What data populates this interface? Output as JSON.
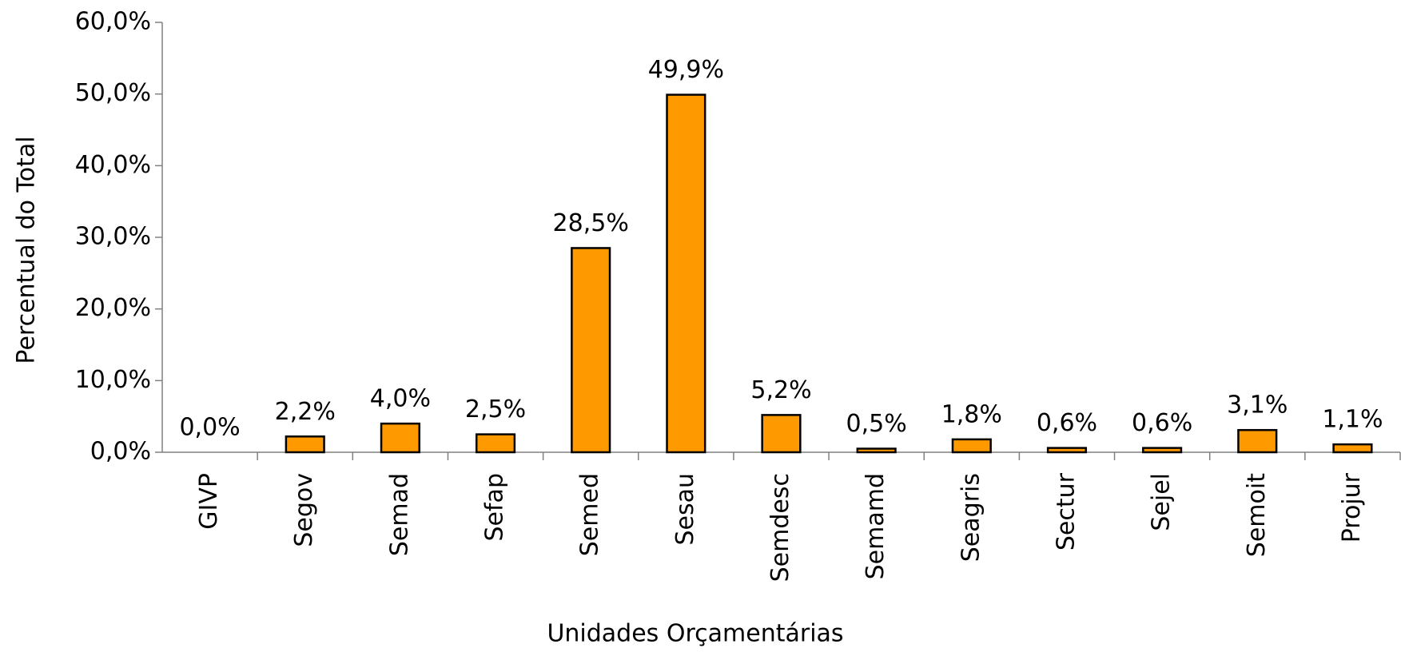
{
  "chart_data": {
    "type": "bar",
    "x_label": "Unidades Orçamentárias",
    "y_label": "Percentual do Total",
    "categories": [
      "GIVP",
      "Segov",
      "Semad",
      "Sefap",
      "Semed",
      "Sesau",
      "Semdesc",
      "Semamd",
      "Seagris",
      "Sectur",
      "Sejel",
      "Semoit",
      "Projur"
    ],
    "values": [
      0.0,
      2.2,
      4.0,
      2.5,
      28.5,
      49.9,
      5.2,
      0.5,
      1.8,
      0.6,
      0.6,
      3.1,
      1.1
    ],
    "value_labels": [
      "0,0%",
      "2,2%",
      "4,0%",
      "2,5%",
      "28,5%",
      "49,9%",
      "5,2%",
      "0,5%",
      "1,8%",
      "0,6%",
      "0,6%",
      "3,1%",
      "1,1%"
    ],
    "color": "#ff9900",
    "ylim": [
      0,
      60
    ],
    "yticks": [
      {
        "value": 0,
        "label": "0,0%"
      },
      {
        "value": 10,
        "label": "10,0%"
      },
      {
        "value": 20,
        "label": "20,0%"
      },
      {
        "value": 30,
        "label": "30,0%"
      },
      {
        "value": 40,
        "label": "40,0%"
      },
      {
        "value": 50,
        "label": "50,0%"
      },
      {
        "value": 60,
        "label": "60,0%"
      }
    ],
    "grid": false
  }
}
